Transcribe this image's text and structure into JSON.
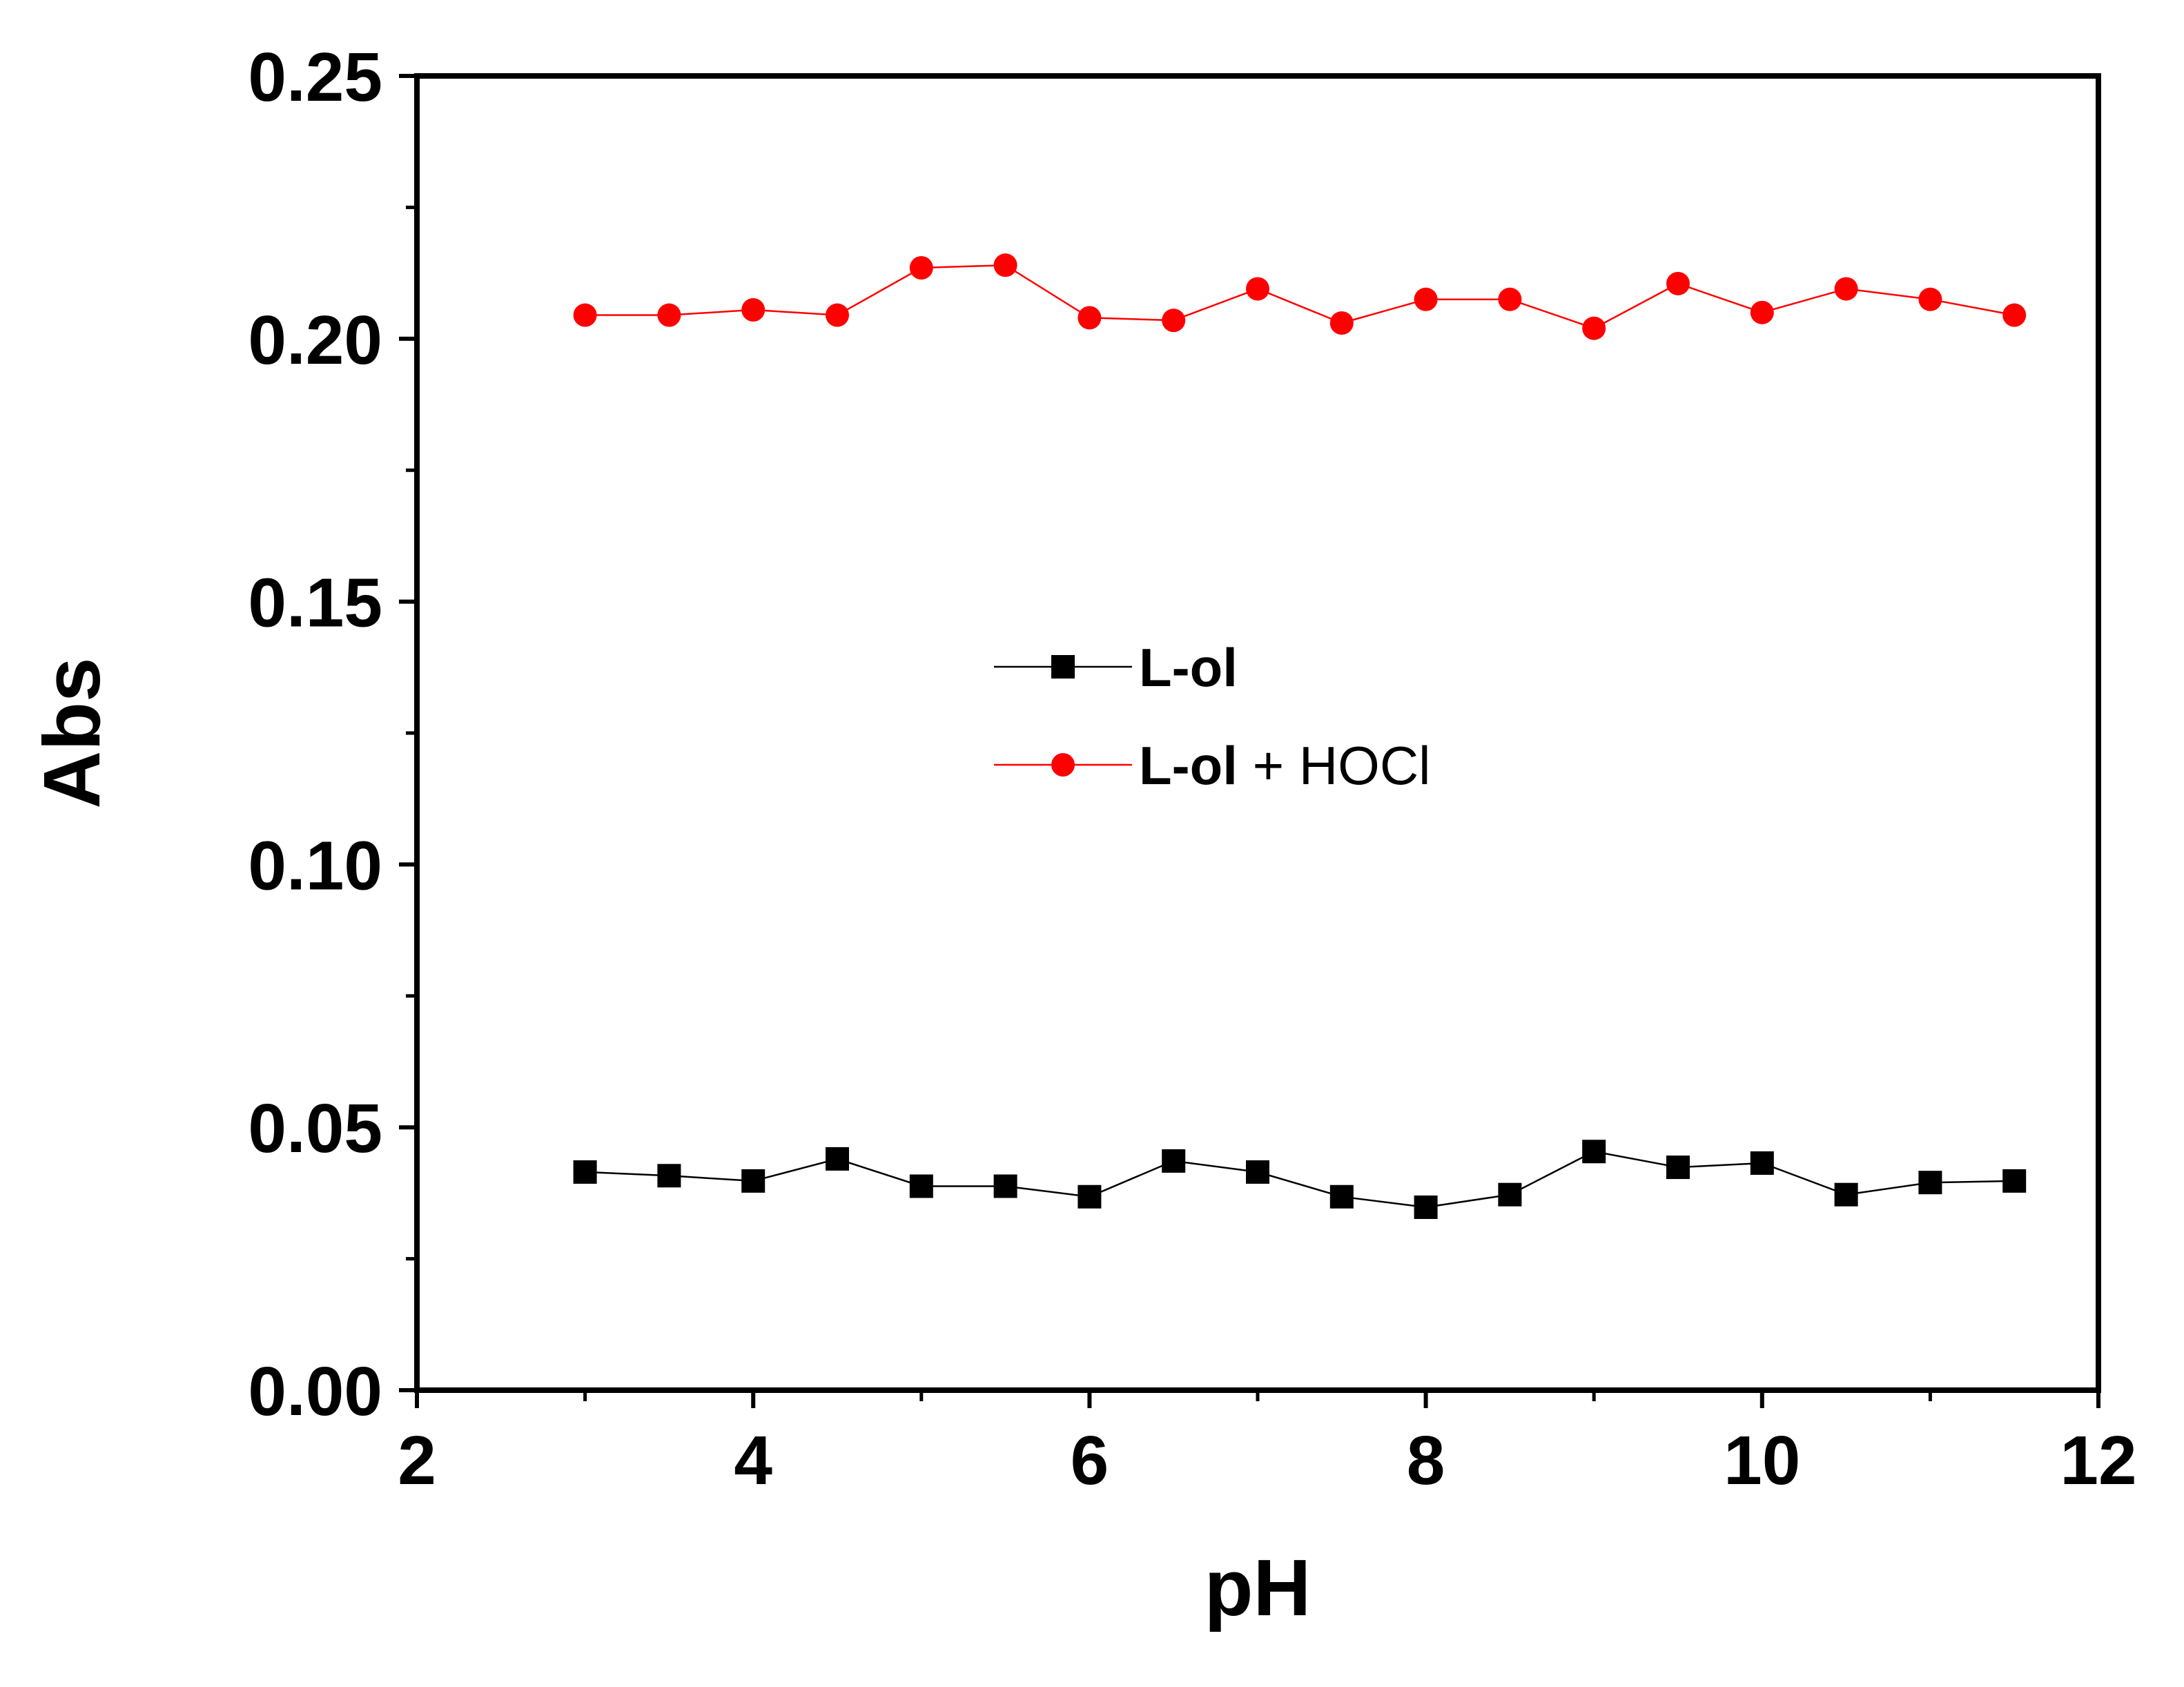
{
  "chart_data": {
    "type": "line",
    "title": "",
    "xlabel": "pH",
    "ylabel": "Abs",
    "xlim": [
      2,
      12
    ],
    "ylim": [
      0.0,
      0.25
    ],
    "x_ticks": [
      2,
      4,
      6,
      8,
      10,
      12
    ],
    "x_tick_labels": [
      "2",
      "4",
      "6",
      "8",
      "10",
      "12"
    ],
    "y_ticks": [
      0.0,
      0.05,
      0.1,
      0.15,
      0.2,
      0.25
    ],
    "y_tick_labels": [
      "0.00",
      "0.05",
      "0.10",
      "0.15",
      "0.20",
      "0.25"
    ],
    "grid": false,
    "legend_position": "center",
    "x": [
      3.0,
      3.5,
      4.0,
      4.5,
      5.0,
      5.5,
      6.0,
      6.5,
      7.0,
      7.5,
      8.0,
      8.5,
      9.0,
      9.5,
      10.0,
      10.5,
      11.0,
      11.5
    ],
    "series": [
      {
        "name": "L-ol",
        "label_bold": "L-ol",
        "label_rest": "",
        "color": "#000000",
        "marker": "square",
        "values": [
          0.0415,
          0.0408,
          0.0398,
          0.044,
          0.0388,
          0.0388,
          0.0368,
          0.0436,
          0.0415,
          0.0368,
          0.0348,
          0.0372,
          0.0454,
          0.0424,
          0.0432,
          0.0372,
          0.0395,
          0.0398
        ]
      },
      {
        "name": "L-ol + HOCl",
        "label_bold": "L-ol",
        "label_rest": " + HOCl",
        "color": "#ff0000",
        "marker": "circle",
        "values": [
          0.2045,
          0.2045,
          0.2055,
          0.2045,
          0.2135,
          0.214,
          0.204,
          0.2035,
          0.2095,
          0.203,
          0.2075,
          0.2075,
          0.202,
          0.2105,
          0.205,
          0.2095,
          0.2075,
          0.2045
        ]
      }
    ]
  }
}
